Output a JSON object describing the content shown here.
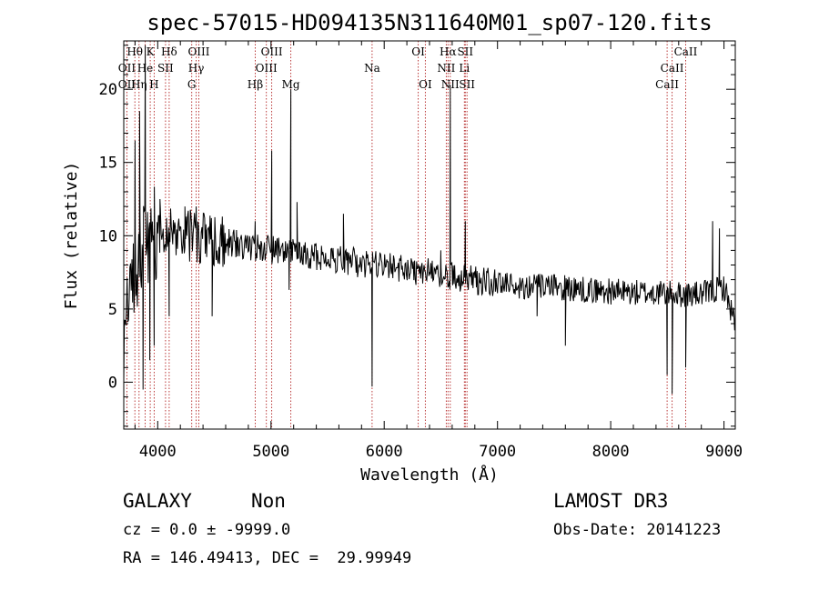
{
  "chart_data": {
    "type": "line",
    "title": "spec-57015-HD094135N311640M01_sp07-120.fits",
    "xlabel": "Wavelength (Å)",
    "ylabel": "Flux (relative)",
    "xlim": [
      3700,
      9100
    ],
    "ylim": [
      -3.2,
      23.3
    ],
    "xticks": [
      4000,
      5000,
      6000,
      7000,
      8000,
      9000
    ],
    "yticks": [
      0,
      5,
      10,
      15,
      20
    ],
    "xtick_labels": [
      "4000",
      "5000",
      "6000",
      "7000",
      "8000",
      "9000"
    ],
    "ytick_labels": [
      "0",
      "5",
      "10",
      "15",
      "20"
    ],
    "line_color": "#000000",
    "marker_color": "#b22222",
    "spectrum_anchors": {
      "x": [
        3700,
        3760,
        3800,
        3850,
        3900,
        3950,
        4000,
        4100,
        4200,
        4300,
        4400,
        4500,
        4600,
        4700,
        4800,
        4900,
        5000,
        5200,
        5400,
        5600,
        5800,
        6000,
        6200,
        6400,
        6600,
        6700,
        6900,
        7000,
        7200,
        7400,
        7600,
        7800,
        8000,
        8200,
        8400,
        8600,
        8800,
        8900,
        9000,
        9100
      ],
      "y": [
        3.0,
        5.5,
        8.0,
        9.0,
        9.5,
        10.0,
        10.2,
        10.3,
        10.2,
        10.0,
        9.9,
        9.7,
        9.5,
        9.4,
        9.3,
        9.2,
        9.0,
        8.8,
        8.6,
        8.4,
        8.1,
        7.9,
        7.7,
        7.5,
        7.2,
        7.1,
        6.9,
        6.7,
        6.6,
        6.5,
        6.4,
        6.3,
        6.2,
        6.1,
        6.1,
        6.0,
        6.0,
        6.2,
        6.5,
        4.0
      ]
    },
    "spectrum_features": [
      {
        "x": 3800,
        "y": 16.5
      },
      {
        "x": 3840,
        "y": 18.5
      },
      {
        "x": 3870,
        "y": -0.5
      },
      {
        "x": 3890,
        "y": 23.0
      },
      {
        "x": 3930,
        "y": 1.5
      },
      {
        "x": 3968,
        "y": 2.5
      },
      {
        "x": 4020,
        "y": 12.5
      },
      {
        "x": 4101,
        "y": 4.5
      },
      {
        "x": 4240,
        "y": 12.0
      },
      {
        "x": 4340,
        "y": 12.0
      },
      {
        "x": 4480,
        "y": 4.5
      },
      {
        "x": 4860,
        "y": 11.0
      },
      {
        "x": 5007,
        "y": 15.8
      },
      {
        "x": 5160,
        "y": 6.3
      },
      {
        "x": 5175,
        "y": 20.0
      },
      {
        "x": 5230,
        "y": 12.3
      },
      {
        "x": 5640,
        "y": 11.5
      },
      {
        "x": 5893,
        "y": -0.3
      },
      {
        "x": 6500,
        "y": 9.0
      },
      {
        "x": 6563,
        "y": 6.5
      },
      {
        "x": 6583,
        "y": 20.3
      },
      {
        "x": 6716,
        "y": 11.0
      },
      {
        "x": 7350,
        "y": 4.5
      },
      {
        "x": 7600,
        "y": 2.5
      },
      {
        "x": 8498,
        "y": 0.5
      },
      {
        "x": 8542,
        "y": -0.8
      },
      {
        "x": 8662,
        "y": 1.0
      },
      {
        "x": 8900,
        "y": 11.0
      },
      {
        "x": 8960,
        "y": 10.5
      }
    ],
    "lines": [
      {
        "label": "OII",
        "x": 3727,
        "row": 1
      },
      {
        "label": "OII",
        "x": 3727,
        "row": 2
      },
      {
        "label": "Hθ",
        "x": 3798,
        "row": 0
      },
      {
        "label": "Hη",
        "x": 3835,
        "row": 2
      },
      {
        "label": "He",
        "x": 3889,
        "row": 1
      },
      {
        "label": "K",
        "x": 3934,
        "row": 0
      },
      {
        "label": "H",
        "x": 3968,
        "row": 2
      },
      {
        "label": "Hδ",
        "x": 4101,
        "row": 0
      },
      {
        "label": "SII",
        "x": 4069,
        "row": 1
      },
      {
        "label": "OIII",
        "x": 4363,
        "row": 0
      },
      {
        "label": "Hγ",
        "x": 4340,
        "row": 1
      },
      {
        "label": "G",
        "x": 4300,
        "row": 2
      },
      {
        "label": "Hβ",
        "x": 4861,
        "row": 2
      },
      {
        "label": "OIII",
        "x": 5007,
        "row": 0
      },
      {
        "label": "OIII",
        "x": 4959,
        "row": 1
      },
      {
        "label": "Mg",
        "x": 5175,
        "row": 2
      },
      {
        "label": "Na",
        "x": 5893,
        "row": 1
      },
      {
        "label": "OI",
        "x": 6300,
        "row": 0
      },
      {
        "label": "OI",
        "x": 6363,
        "row": 2
      },
      {
        "label": "Hα",
        "x": 6563,
        "row": 0
      },
      {
        "label": "SII",
        "x": 6716,
        "row": 0
      },
      {
        "label": "NII",
        "x": 6548,
        "row": 1
      },
      {
        "label": "Li",
        "x": 6708,
        "row": 1
      },
      {
        "label": "NII",
        "x": 6583,
        "row": 2
      },
      {
        "label": "SII",
        "x": 6731,
        "row": 2
      },
      {
        "label": "CaII",
        "x": 8662,
        "row": 0
      },
      {
        "label": "CaII",
        "x": 8542,
        "row": 1
      },
      {
        "label": "CaII",
        "x": 8498,
        "row": 2
      }
    ],
    "marker_lines_x": [
      3727,
      3798,
      3835,
      3889,
      3934,
      3968,
      4069,
      4101,
      4300,
      4340,
      4363,
      4861,
      4959,
      5007,
      5175,
      5893,
      6300,
      6363,
      6548,
      6563,
      6583,
      6708,
      6716,
      6731,
      8498,
      8542,
      8662
    ],
    "grid": false,
    "legend": "none"
  },
  "info": {
    "class": "GALAXY",
    "subclass": "Non",
    "survey": "LAMOST DR3",
    "cz": "cz = 0.0 ± -9999.0",
    "obs_date": "Obs-Date: 20141223",
    "radec": "RA = 146.49413, DEC =  29.99949"
  }
}
